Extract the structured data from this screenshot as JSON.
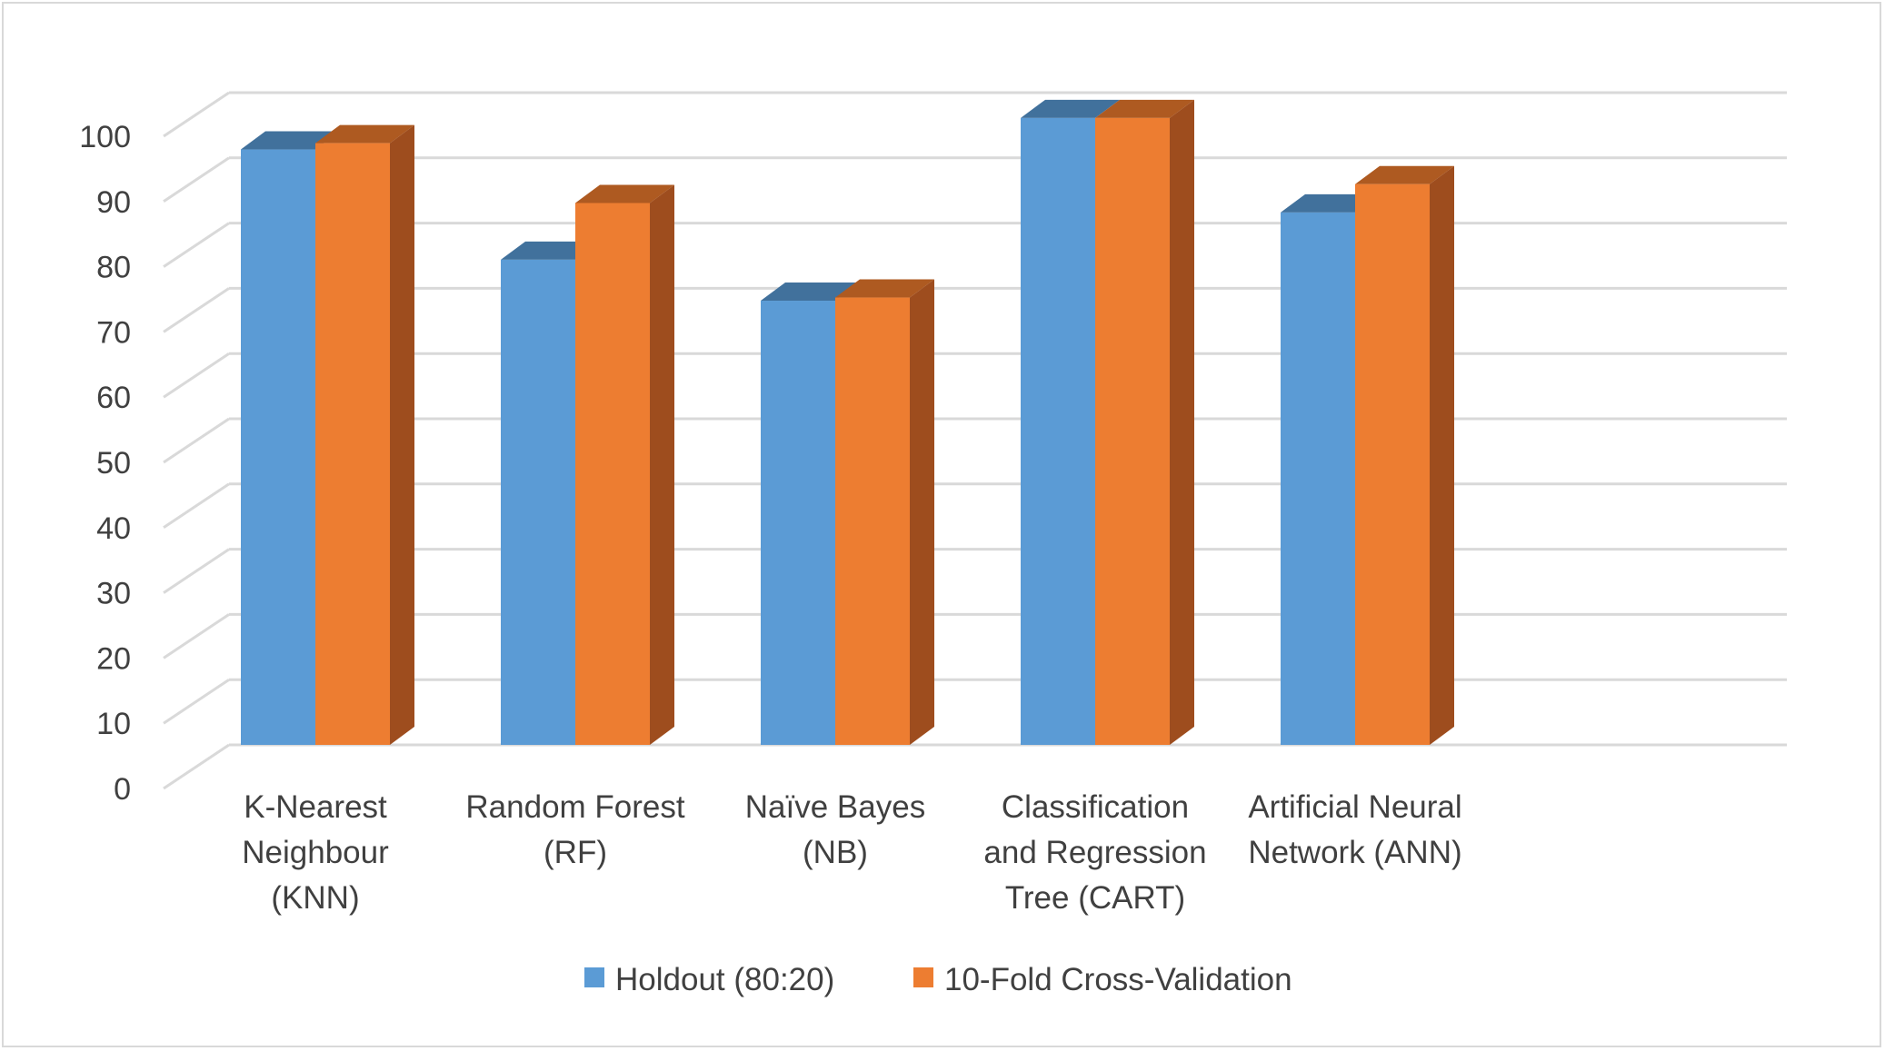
{
  "chart_data": {
    "type": "bar",
    "style": "3d-clustered-column",
    "title": "",
    "xlabel": "",
    "ylabel": "",
    "ylim": [
      0,
      100
    ],
    "yticks": [
      0,
      10,
      20,
      30,
      40,
      50,
      60,
      70,
      80,
      90,
      100
    ],
    "grid": true,
    "legend_position": "bottom",
    "categories": [
      [
        "K-Nearest",
        "Neighbour",
        "(KNN)"
      ],
      [
        "Random Forest",
        "(RF)"
      ],
      [
        "Naïve Bayes",
        "(NB)"
      ],
      [
        "Classification",
        "and Regression",
        "Tree (CART)"
      ],
      [
        "Artificial Neural",
        "Network (ANN)"
      ]
    ],
    "series": [
      {
        "name": "Holdout (80:20)",
        "color": "#5b9bd5",
        "top_color": "#41719c",
        "values": [
          94.5,
          77,
          70.5,
          99.5,
          84.5
        ]
      },
      {
        "name": "10-Fold Cross-Validation",
        "color": "#ed7d31",
        "side_color": "#9e4d1e",
        "top_color": "#ae5a21",
        "values": [
          95.5,
          86,
          71,
          99.5,
          89
        ]
      }
    ],
    "grid_color": "#d9d9d9"
  }
}
